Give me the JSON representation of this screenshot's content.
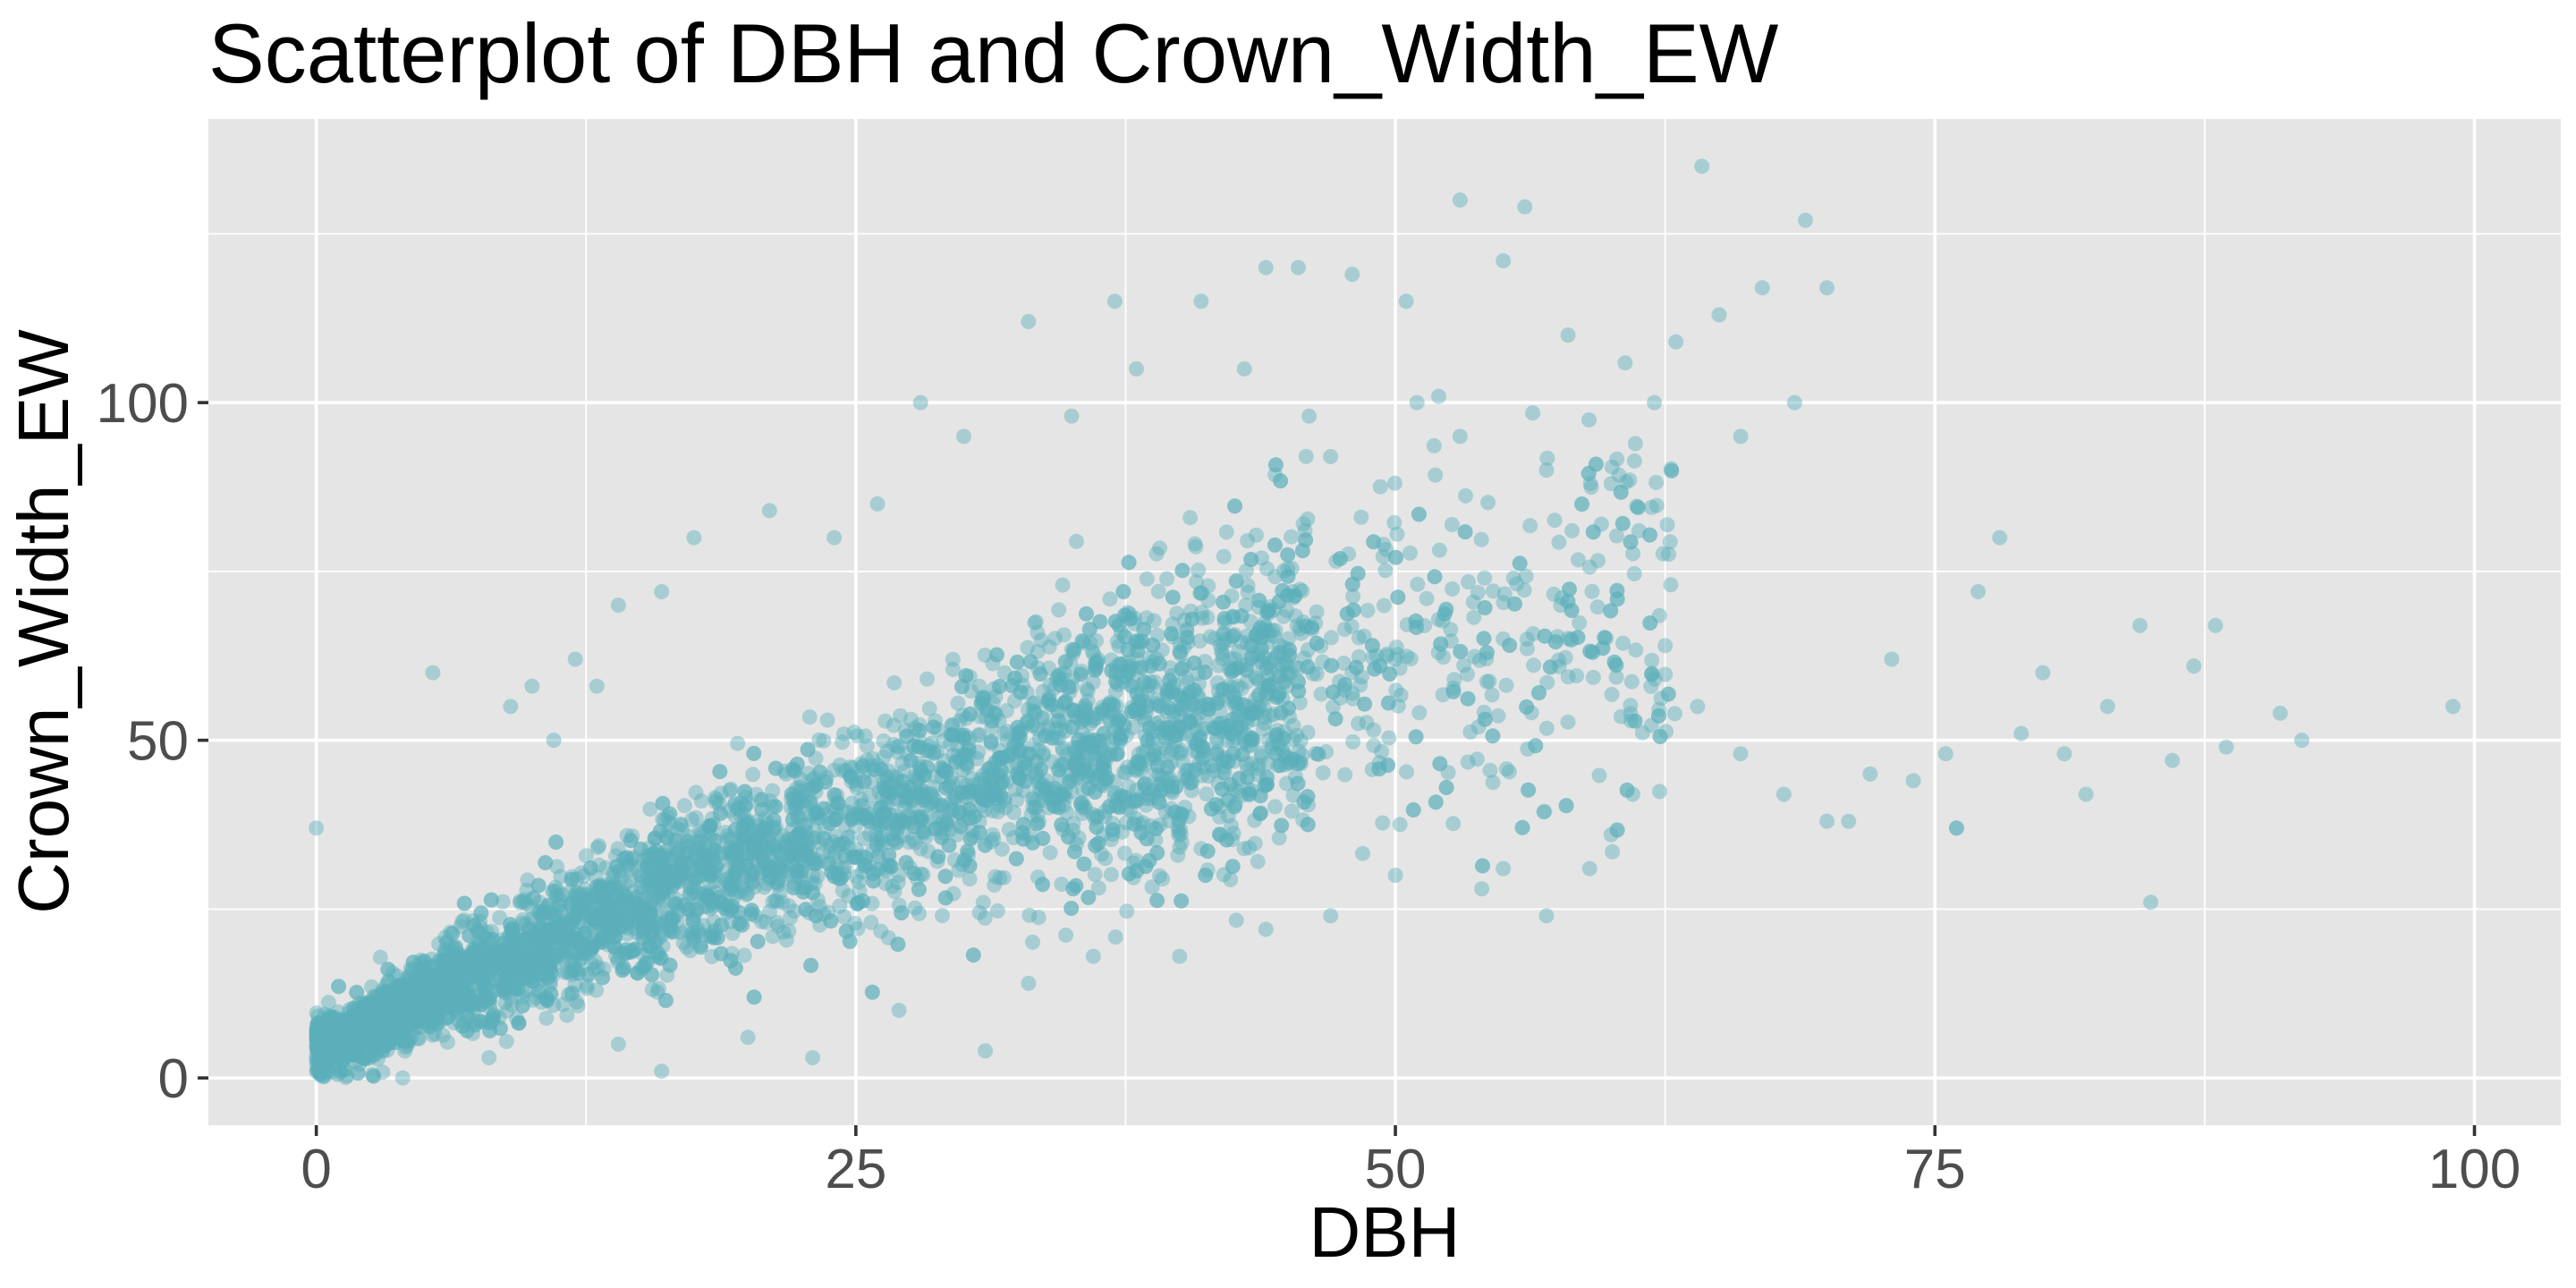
{
  "chart_data": {
    "type": "scatter",
    "title": "Scatterplot of DBH and Crown_Width_EW",
    "xlabel": "DBH",
    "ylabel": "Crown_Width_EW",
    "xlim": [
      -5,
      104
    ],
    "ylim": [
      -7,
      142
    ],
    "x_ticks": [
      0,
      25,
      50,
      75,
      100
    ],
    "x_tick_labels": [
      "0",
      "25",
      "50",
      "75",
      "100"
    ],
    "y_ticks": [
      0,
      50,
      100
    ],
    "y_tick_labels": [
      "0",
      "50",
      "100"
    ],
    "grid": true,
    "legend": "none",
    "point_color": "#5BB0BA",
    "point_opacity": 0.45,
    "panel_background": "#E5E5E5",
    "points": [
      [
        0,
        37
      ],
      [
        5.4,
        60
      ],
      [
        0.5,
        3
      ],
      [
        1,
        5
      ],
      [
        1.5,
        6
      ],
      [
        2,
        8
      ],
      [
        3,
        10
      ],
      [
        4,
        12
      ],
      [
        5,
        14
      ],
      [
        6,
        16
      ],
      [
        8,
        20
      ],
      [
        10,
        23
      ],
      [
        12,
        27
      ],
      [
        15,
        30
      ],
      [
        18,
        34
      ],
      [
        20,
        38
      ],
      [
        22,
        40
      ],
      [
        25,
        44
      ],
      [
        28,
        46
      ],
      [
        30,
        48
      ],
      [
        32,
        50
      ],
      [
        35,
        52
      ],
      [
        38,
        54
      ],
      [
        40,
        55
      ],
      [
        42,
        56
      ],
      [
        45,
        58
      ],
      [
        48,
        60
      ],
      [
        50,
        62
      ],
      [
        52,
        63
      ],
      [
        55,
        65
      ],
      [
        17.5,
        80
      ],
      [
        21,
        84
      ],
      [
        28,
        100
      ],
      [
        33,
        112
      ],
      [
        37,
        115
      ],
      [
        41,
        115
      ],
      [
        44,
        120
      ],
      [
        45.5,
        120
      ],
      [
        48,
        119
      ],
      [
        50.5,
        115
      ],
      [
        53,
        130
      ],
      [
        55,
        121
      ],
      [
        56,
        129
      ],
      [
        58,
        110
      ],
      [
        62,
        100
      ],
      [
        63,
        109
      ],
      [
        64.2,
        135
      ],
      [
        65,
        113
      ],
      [
        67,
        117
      ],
      [
        68.5,
        100
      ],
      [
        69,
        127
      ],
      [
        70,
        117
      ],
      [
        66,
        95
      ],
      [
        60,
        88
      ],
      [
        57,
        90
      ],
      [
        62.5,
        64
      ],
      [
        64,
        55
      ],
      [
        66,
        48
      ],
      [
        68,
        42
      ],
      [
        70,
        38
      ],
      [
        72,
        45
      ],
      [
        73,
        62
      ],
      [
        75.5,
        48
      ],
      [
        76,
        37
      ],
      [
        77,
        72
      ],
      [
        78,
        80
      ],
      [
        79,
        51
      ],
      [
        80,
        60
      ],
      [
        81,
        48
      ],
      [
        82,
        42
      ],
      [
        83,
        55
      ],
      [
        84.5,
        67
      ],
      [
        85,
        26
      ],
      [
        86,
        47
      ],
      [
        87,
        61
      ],
      [
        88,
        67
      ],
      [
        88.5,
        49
      ],
      [
        91,
        54
      ],
      [
        92,
        50
      ],
      [
        99,
        55
      ],
      [
        71,
        38
      ],
      [
        74,
        44
      ],
      [
        76,
        37
      ],
      [
        59,
        31
      ],
      [
        60,
        36
      ],
      [
        61,
        42
      ],
      [
        57,
        24
      ],
      [
        55,
        31
      ],
      [
        54,
        28
      ],
      [
        50,
        30
      ],
      [
        47,
        24
      ],
      [
        44,
        22
      ],
      [
        40,
        18
      ],
      [
        36,
        18
      ],
      [
        33,
        14
      ],
      [
        31,
        4
      ],
      [
        27,
        10
      ],
      [
        23,
        3
      ],
      [
        20,
        6
      ],
      [
        16,
        1
      ],
      [
        14,
        5
      ],
      [
        8,
        3
      ],
      [
        4,
        0
      ],
      [
        2,
        2
      ],
      [
        12,
        62
      ],
      [
        14,
        70
      ],
      [
        16,
        72
      ],
      [
        9,
        55
      ],
      [
        10,
        58
      ],
      [
        11,
        50
      ],
      [
        13,
        58
      ],
      [
        43,
        105
      ],
      [
        46,
        98
      ],
      [
        51,
        100
      ],
      [
        47,
        92
      ],
      [
        53,
        95
      ],
      [
        38,
        105
      ],
      [
        35,
        98
      ],
      [
        30,
        95
      ],
      [
        26,
        85
      ],
      [
        24,
        80
      ]
    ]
  }
}
